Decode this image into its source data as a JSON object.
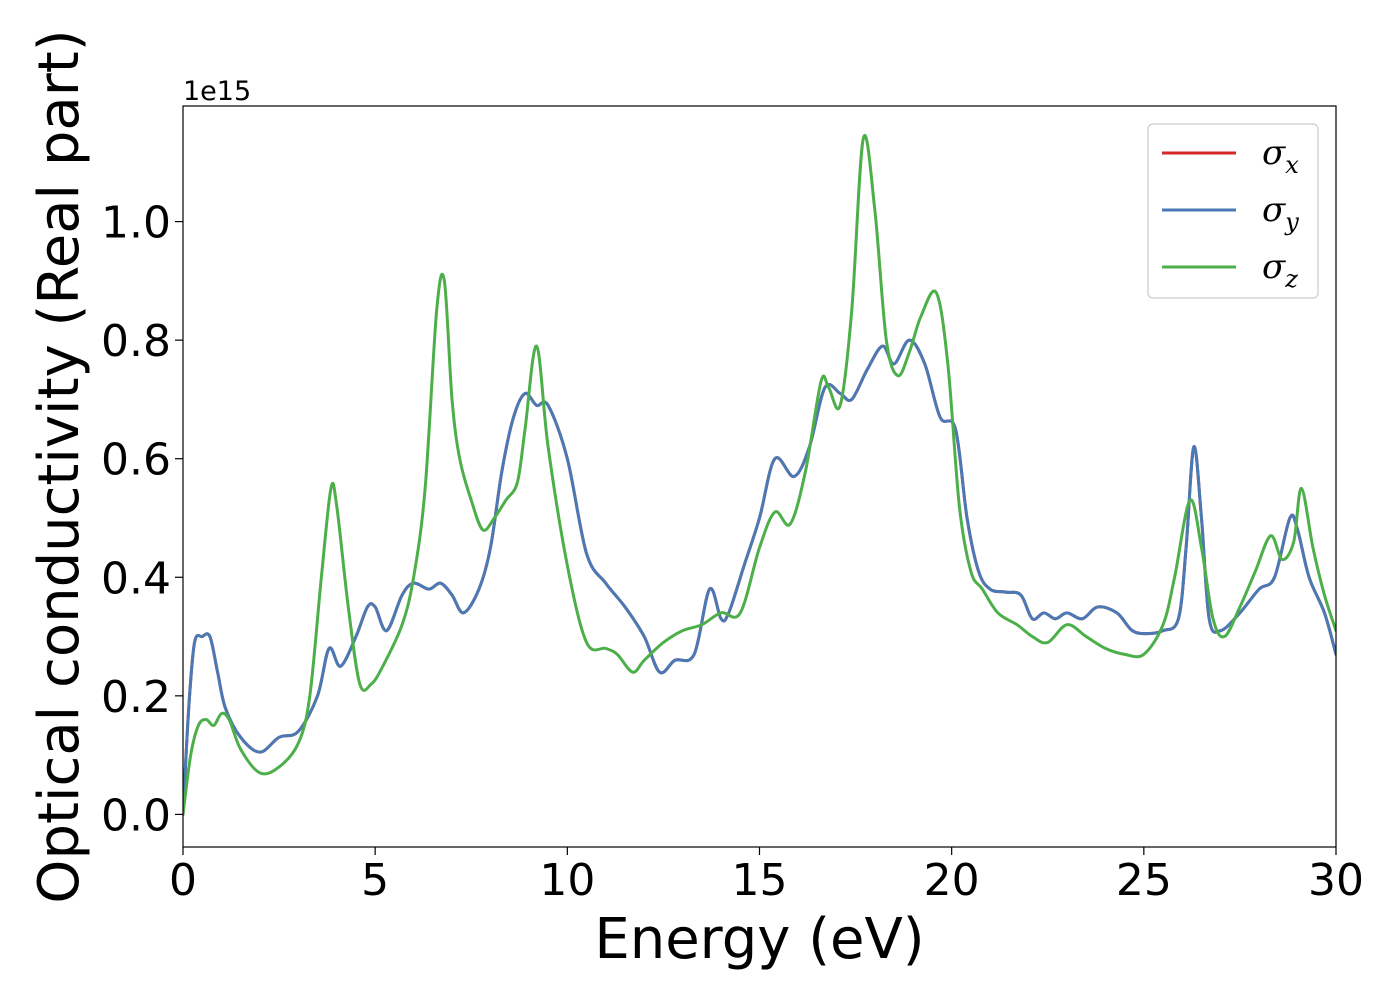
{
  "chart_data": {
    "type": "line",
    "title": "",
    "xlabel": "Energy (eV)",
    "ylabel": "Optical conductivity (Real part)",
    "y_offset_text": "1e15",
    "xlim": [
      0,
      30
    ],
    "ylim": [
      -0.055,
      1.195
    ],
    "x_ticks": [
      0,
      5,
      10,
      15,
      20,
      25,
      30
    ],
    "x_tick_labels": [
      "0",
      "5",
      "10",
      "15",
      "20",
      "25",
      "30"
    ],
    "y_ticks": [
      0.0,
      0.2,
      0.4,
      0.6,
      0.8,
      1.0
    ],
    "y_tick_labels": [
      "0.0",
      "0.2",
      "0.4",
      "0.6",
      "0.8",
      "1.0"
    ],
    "grid": false,
    "legend_position": "top-right",
    "series": [
      {
        "name": "σx",
        "symbol": "σ",
        "subscript": "x",
        "color": "#d62728",
        "x": [
          0,
          0.15,
          0.3,
          0.5,
          0.7,
          0.9,
          1.1,
          1.5,
          2.0,
          2.5,
          3.0,
          3.5,
          3.8,
          4.1,
          4.5,
          4.8,
          5.0,
          5.3,
          5.7,
          6.0,
          6.4,
          6.7,
          7.0,
          7.3,
          7.7,
          8.0,
          8.3,
          8.6,
          8.9,
          9.2,
          9.5,
          10.0,
          10.5,
          11.0,
          11.5,
          12.0,
          12.4,
          12.8,
          13.3,
          13.7,
          14.0,
          14.2,
          14.6,
          15.0,
          15.4,
          15.9,
          16.3,
          16.7,
          17.1,
          17.4,
          17.8,
          18.2,
          18.5,
          18.9,
          19.3,
          19.7,
          20.1,
          20.4,
          20.7,
          21.0,
          21.4,
          21.8,
          22.1,
          22.4,
          22.7,
          23.0,
          23.4,
          23.8,
          24.3,
          24.7,
          25.1,
          25.5,
          25.9,
          26.1,
          26.3,
          26.5,
          26.7,
          27.0,
          27.5,
          28.0,
          28.4,
          28.8,
          29.0,
          29.3,
          29.7,
          30.0
        ],
        "y": [
          0.0,
          0.18,
          0.29,
          0.3,
          0.3,
          0.24,
          0.18,
          0.13,
          0.105,
          0.13,
          0.14,
          0.2,
          0.28,
          0.25,
          0.3,
          0.35,
          0.35,
          0.31,
          0.37,
          0.39,
          0.38,
          0.39,
          0.37,
          0.34,
          0.38,
          0.45,
          0.58,
          0.67,
          0.71,
          0.69,
          0.69,
          0.6,
          0.44,
          0.39,
          0.35,
          0.3,
          0.24,
          0.26,
          0.27,
          0.38,
          0.33,
          0.34,
          0.42,
          0.5,
          0.6,
          0.57,
          0.62,
          0.72,
          0.71,
          0.7,
          0.75,
          0.79,
          0.76,
          0.8,
          0.76,
          0.67,
          0.65,
          0.5,
          0.41,
          0.38,
          0.375,
          0.37,
          0.33,
          0.34,
          0.33,
          0.34,
          0.33,
          0.35,
          0.34,
          0.31,
          0.305,
          0.31,
          0.33,
          0.45,
          0.62,
          0.5,
          0.33,
          0.31,
          0.34,
          0.38,
          0.4,
          0.5,
          0.48,
          0.4,
          0.34,
          0.27
        ]
      },
      {
        "name": "σy",
        "symbol": "σ",
        "subscript": "y",
        "color": "#4a7ab5",
        "x": [
          0,
          0.15,
          0.3,
          0.5,
          0.7,
          0.9,
          1.1,
          1.5,
          2.0,
          2.5,
          3.0,
          3.5,
          3.8,
          4.1,
          4.5,
          4.8,
          5.0,
          5.3,
          5.7,
          6.0,
          6.4,
          6.7,
          7.0,
          7.3,
          7.7,
          8.0,
          8.3,
          8.6,
          8.9,
          9.2,
          9.5,
          10.0,
          10.5,
          11.0,
          11.5,
          12.0,
          12.4,
          12.8,
          13.3,
          13.7,
          14.0,
          14.2,
          14.6,
          15.0,
          15.4,
          15.9,
          16.3,
          16.7,
          17.1,
          17.4,
          17.8,
          18.2,
          18.5,
          18.9,
          19.3,
          19.7,
          20.1,
          20.4,
          20.7,
          21.0,
          21.4,
          21.8,
          22.1,
          22.4,
          22.7,
          23.0,
          23.4,
          23.8,
          24.3,
          24.7,
          25.1,
          25.5,
          25.9,
          26.1,
          26.3,
          26.5,
          26.7,
          27.0,
          27.5,
          28.0,
          28.4,
          28.8,
          29.0,
          29.3,
          29.7,
          30.0
        ],
        "y": [
          0.0,
          0.18,
          0.29,
          0.3,
          0.3,
          0.24,
          0.18,
          0.13,
          0.105,
          0.13,
          0.14,
          0.2,
          0.28,
          0.25,
          0.3,
          0.35,
          0.35,
          0.31,
          0.37,
          0.39,
          0.38,
          0.39,
          0.37,
          0.34,
          0.38,
          0.45,
          0.58,
          0.67,
          0.71,
          0.69,
          0.69,
          0.6,
          0.44,
          0.39,
          0.35,
          0.3,
          0.24,
          0.26,
          0.27,
          0.38,
          0.33,
          0.34,
          0.42,
          0.5,
          0.6,
          0.57,
          0.62,
          0.72,
          0.71,
          0.7,
          0.75,
          0.79,
          0.76,
          0.8,
          0.76,
          0.67,
          0.65,
          0.5,
          0.41,
          0.38,
          0.375,
          0.37,
          0.33,
          0.34,
          0.33,
          0.34,
          0.33,
          0.35,
          0.34,
          0.31,
          0.305,
          0.31,
          0.33,
          0.45,
          0.62,
          0.5,
          0.33,
          0.31,
          0.34,
          0.38,
          0.4,
          0.5,
          0.48,
          0.4,
          0.34,
          0.27
        ]
      },
      {
        "name": "σz",
        "symbol": "σ",
        "subscript": "z",
        "color": "#4daf4a",
        "x": [
          0,
          0.2,
          0.4,
          0.6,
          0.8,
          1.0,
          1.2,
          1.5,
          2.0,
          2.5,
          3.0,
          3.3,
          3.6,
          3.85,
          4.0,
          4.3,
          4.6,
          4.9,
          5.2,
          5.7,
          6.0,
          6.3,
          6.6,
          6.8,
          7.0,
          7.2,
          7.5,
          7.8,
          8.1,
          8.4,
          8.7,
          8.9,
          9.2,
          9.5,
          10.0,
          10.5,
          11.0,
          11.3,
          11.7,
          12.0,
          12.5,
          13.0,
          13.5,
          14.0,
          14.5,
          15.0,
          15.4,
          15.8,
          16.2,
          16.6,
          16.8,
          17.1,
          17.4,
          17.7,
          18.0,
          18.3,
          18.6,
          18.9,
          19.2,
          19.6,
          19.9,
          20.2,
          20.5,
          20.8,
          21.2,
          21.7,
          22.1,
          22.5,
          23.0,
          23.5,
          24.0,
          24.5,
          25.0,
          25.5,
          25.8,
          26.2,
          26.5,
          26.8,
          27.1,
          27.5,
          27.9,
          28.3,
          28.6,
          28.9,
          29.1,
          29.4,
          29.7,
          30.0
        ],
        "y": [
          0.0,
          0.1,
          0.15,
          0.16,
          0.15,
          0.17,
          0.16,
          0.11,
          0.07,
          0.08,
          0.12,
          0.2,
          0.4,
          0.55,
          0.52,
          0.35,
          0.22,
          0.22,
          0.25,
          0.32,
          0.4,
          0.55,
          0.85,
          0.9,
          0.7,
          0.6,
          0.53,
          0.48,
          0.5,
          0.53,
          0.56,
          0.65,
          0.79,
          0.62,
          0.42,
          0.29,
          0.28,
          0.27,
          0.24,
          0.26,
          0.29,
          0.31,
          0.32,
          0.34,
          0.34,
          0.45,
          0.51,
          0.49,
          0.58,
          0.73,
          0.72,
          0.69,
          0.85,
          1.14,
          1.02,
          0.8,
          0.74,
          0.78,
          0.84,
          0.88,
          0.76,
          0.52,
          0.41,
          0.38,
          0.34,
          0.32,
          0.3,
          0.29,
          0.32,
          0.3,
          0.28,
          0.27,
          0.27,
          0.32,
          0.4,
          0.53,
          0.45,
          0.33,
          0.3,
          0.35,
          0.41,
          0.47,
          0.43,
          0.46,
          0.55,
          0.45,
          0.37,
          0.31
        ]
      }
    ]
  }
}
